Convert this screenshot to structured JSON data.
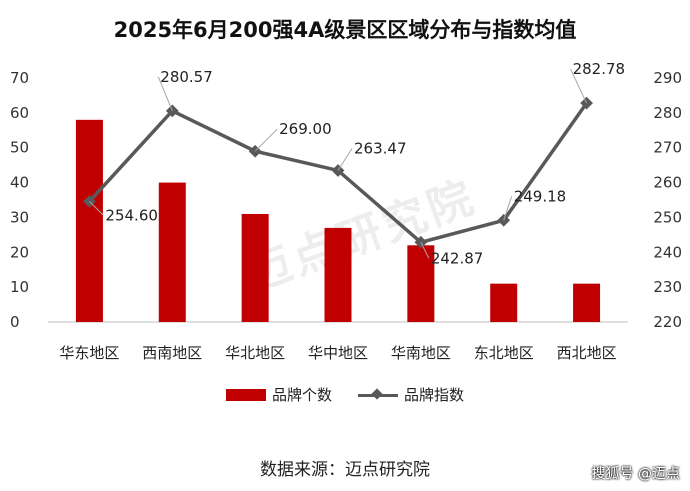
{
  "chart_data": {
    "type": "bar+line",
    "title": "2025年6月200强4A级景区区域分布与指数均值",
    "categories": [
      "华东地区",
      "西南地区",
      "华北地区",
      "华中地区",
      "华南地区",
      "东北地区",
      "西北地区"
    ],
    "series": [
      {
        "name": "品牌个数",
        "type": "bar",
        "axis": "left",
        "color": "#c00000",
        "values": [
          58,
          40,
          31,
          27,
          22,
          11,
          11
        ]
      },
      {
        "name": "品牌指数",
        "type": "line",
        "axis": "right",
        "color": "#595959",
        "values": [
          254.6,
          280.57,
          269.0,
          263.47,
          242.87,
          249.18,
          282.78
        ]
      }
    ],
    "data_labels": [
      "254.60",
      "280.57",
      "269.00",
      "263.47",
      "242.87",
      "249.18",
      "282.78"
    ],
    "y_left": {
      "lim": [
        0,
        70
      ],
      "ticks": [
        "0",
        "10",
        "20",
        "30",
        "40",
        "50",
        "60",
        "70"
      ]
    },
    "y_right": {
      "lim": [
        220,
        290
      ],
      "ticks": [
        "220",
        "230",
        "240",
        "250",
        "260",
        "270",
        "280",
        "290"
      ]
    },
    "legend_position": "bottom",
    "grid": false
  },
  "source_text": "数据来源：迈点研究院",
  "watermark_text": "迈点研究院",
  "credit_text": "搜狐号 @迈点"
}
